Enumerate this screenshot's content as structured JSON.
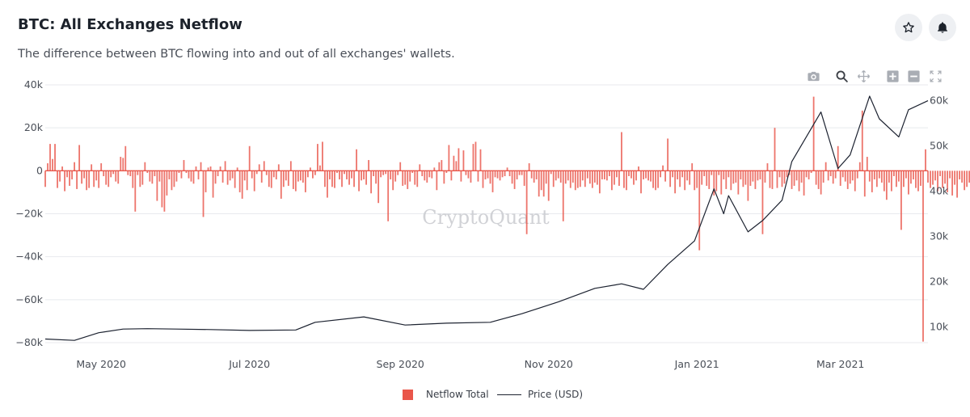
{
  "header": {
    "title": "BTC: All Exchanges Netflow",
    "subtitle": "The difference between BTC flowing into and out of all exchanges' wallets.",
    "star_icon": "star-icon",
    "bell_icon": "bell-icon"
  },
  "toolbar": {
    "icons": [
      "camera-icon",
      "zoom-icon",
      "pan-icon",
      "zoom-in-icon",
      "zoom-out-icon",
      "autoscale-icon"
    ]
  },
  "watermark": "CryptoQuant",
  "legend": {
    "netflow_label": "Netflow Total",
    "price_label": "Price (USD)"
  },
  "colors": {
    "bars": "#e9564a",
    "price_line": "#1c2230",
    "zero_line": "#e9564a",
    "grid": "#e8eaee"
  },
  "chart_data": {
    "type": "bar+line",
    "x_start": "2020-04-08",
    "x_end": "2021-04-06",
    "x_ticks": [
      {
        "date": "2020-05-01",
        "label": "May 2020"
      },
      {
        "date": "2020-07-01",
        "label": "Jul 2020"
      },
      {
        "date": "2020-09-01",
        "label": "Sep 2020"
      },
      {
        "date": "2020-11-01",
        "label": "Nov 2020"
      },
      {
        "date": "2021-01-01",
        "label": "Jan 2021"
      },
      {
        "date": "2021-03-01",
        "label": "Mar 2021"
      }
    ],
    "y_left": {
      "range": [
        -80000,
        40000
      ],
      "ticks": [
        40000,
        20000,
        0,
        -20000,
        -40000,
        -60000,
        -80000
      ],
      "labels": [
        "40k",
        "20k",
        "0",
        "−20k",
        "−40k",
        "−60k",
        "−80k"
      ]
    },
    "y_right": {
      "range": [
        6500,
        63500
      ],
      "ticks": [
        60000,
        50000,
        40000,
        30000,
        20000,
        10000
      ],
      "labels": [
        "60k",
        "50k",
        "40k",
        "30k",
        "20k",
        "10k"
      ]
    },
    "series": [
      {
        "name": "Netflow Total",
        "type": "bar",
        "axis": "left",
        "daily_values": [
          -7500,
          3500,
          -9000,
          5500,
          12500,
          -8000,
          -5000,
          2000,
          -9500,
          -3000,
          -7000,
          -4000,
          4000,
          -8500,
          12000,
          -6000,
          -3500,
          -9000,
          -8000,
          3000,
          -7500,
          -4500,
          -8000,
          3500,
          -2500,
          -6500,
          -7500,
          -3000,
          -1500,
          -5000,
          -6000,
          6500,
          6000,
          11500,
          -2000,
          -2500,
          -8000,
          -9500,
          -2000,
          -7500,
          -6500,
          4000,
          -1000,
          -5000,
          -6000,
          -2500,
          -14000,
          -5000,
          -17000,
          -19000,
          -11500,
          -4000,
          -9000,
          -7500,
          -5000,
          -1000,
          -3500,
          5000,
          -1000,
          -3500,
          -5000,
          -6000,
          2000,
          -4000,
          4000,
          -2500,
          -10000,
          1500,
          2000,
          -12500,
          -6000,
          -2500,
          2000,
          -5500,
          4500,
          -6500,
          -4500,
          -3500,
          -8000,
          1500,
          -10000,
          -13000,
          -4500,
          -9000,
          -21500,
          -3500,
          -9500,
          -1500,
          3000,
          -5500,
          4500,
          -2000,
          -7500,
          -8000,
          -3000,
          -4000,
          3000,
          -13000,
          -7500,
          -4500,
          -7000,
          4500,
          -8500,
          -9500,
          -5000,
          -4500,
          -5500,
          -10000,
          -3000,
          1500,
          -3500,
          -2000,
          -7500,
          2500,
          -2500,
          -7500,
          -12500,
          -4000,
          -7500,
          -8000,
          -1000,
          -4000,
          -7500,
          -1500,
          -4000,
          -6500,
          -3500,
          -7500,
          10000,
          -9500,
          -4500,
          -4000,
          -6500,
          5000,
          -10500,
          -2500,
          -6000,
          -15000,
          -3000,
          -2000,
          -1500,
          5500,
          -4000,
          -9000,
          -5000,
          -2000,
          4000,
          -7000,
          -6500,
          -8500,
          -5000,
          -1000,
          -6500,
          -7500,
          3000,
          -2500,
          -4500,
          -5500,
          -3000,
          -3500,
          1500,
          -9000,
          4000,
          5000,
          -6000,
          -1000,
          12000,
          -4500,
          7000,
          4500,
          10500,
          -5000,
          9500,
          -2000,
          -3500,
          -5500,
          12500,
          13500,
          -5000,
          10000,
          -8000,
          -4000,
          -3500,
          -6000,
          -10000,
          -3000,
          -3500,
          -4500,
          -3000,
          -2500,
          1500,
          -2500,
          -6000,
          -8500,
          -4000,
          -2000,
          -2000,
          -7000,
          -3500,
          3500,
          -3500,
          -5500,
          -4000,
          -12000,
          -9000,
          -12000,
          -6000,
          -14000,
          -1500,
          -7500,
          -4500,
          -3500,
          -5500,
          -23500,
          -6000,
          -4500,
          -8000,
          -5500,
          -9000,
          -8000,
          -7500,
          -4500,
          -7500,
          -3500,
          -6000,
          -8000,
          -5500,
          -6500,
          -10500,
          -4000,
          -4000,
          -4500,
          -2500,
          -9000,
          -6500,
          -3000,
          -7000,
          -4500,
          -8000,
          -9000,
          -2500,
          -3500,
          -6500,
          -4500,
          2000,
          -10500,
          -4000,
          -3500,
          -4500,
          -5000,
          -8000,
          -9000,
          -8000,
          -3000,
          2500,
          -5000,
          -3000,
          -7500,
          -3000,
          -10500,
          -4000,
          -7500,
          -3000,
          -9000,
          -4500,
          -6500,
          3500,
          -9000,
          -8000,
          2000,
          -6500,
          -2500,
          -7000,
          -8500,
          -2000,
          -11500,
          -9500,
          -2000,
          -11000,
          -4000,
          -8500,
          -3000,
          -9000,
          -6000,
          -5500,
          -11000,
          -4000,
          -7500,
          -6500,
          -14000,
          -7000,
          -5000,
          -8500,
          -4500,
          -4000,
          -29500,
          -5500,
          3500,
          -8000,
          -8500,
          -5000,
          -8000,
          -3000,
          -7500,
          -6000,
          -3000,
          -2000,
          -8500,
          -7000,
          -4500,
          -9500,
          -5500,
          -11500,
          -3000,
          -4000,
          -1000,
          -7000,
          -6500,
          -8500,
          -11000,
          -5500,
          4000,
          -4500,
          -2500,
          -6000,
          -3500,
          11500,
          -7000,
          -3000,
          -5000,
          -8500,
          -6000,
          -4500,
          -9500,
          -3500,
          4000,
          -6500,
          -12000,
          6500,
          -5000,
          -10000,
          -4000,
          -7500,
          -3500,
          -5500,
          -9500,
          -13500,
          -5500,
          -9500,
          -2500,
          -7500,
          -5000,
          -4000,
          -7500,
          -3500,
          -11000,
          -6000,
          -4000,
          -8000,
          -9500,
          -7000,
          -1500,
          -10500,
          -5500,
          -8000,
          -6500,
          -4500,
          -9500,
          -2500,
          -8000,
          -6000,
          -10000,
          -3500,
          -11500,
          -6500,
          -12500,
          -4000,
          -5500,
          -9000,
          -7500,
          -5500,
          -10000,
          -4000,
          -8500,
          -6500,
          -9000,
          -13000,
          -5000,
          -8000,
          -11500,
          -6500,
          -10000,
          -7000,
          -7500,
          -9000,
          -12000,
          -6000,
          -8500,
          -8000,
          -7500,
          -11500,
          -9000,
          -8000
        ],
        "highlights": [
          {
            "date": "2020-04-10",
            "value": 12500
          },
          {
            "date": "2020-05-15",
            "value": -19000
          },
          {
            "date": "2020-06-12",
            "value": -21500
          },
          {
            "date": "2020-07-01",
            "value": 11500
          },
          {
            "date": "2020-07-29",
            "value": 12500
          },
          {
            "date": "2020-07-31",
            "value": 13500
          },
          {
            "date": "2020-08-27",
            "value": -23500
          },
          {
            "date": "2020-10-23",
            "value": -29500
          },
          {
            "date": "2020-12-01",
            "value": 18000
          },
          {
            "date": "2020-12-20",
            "value": 15000
          },
          {
            "date": "2021-01-02",
            "value": -37000
          },
          {
            "date": "2021-02-02",
            "value": 20000
          },
          {
            "date": "2021-02-18",
            "value": 34500
          },
          {
            "date": "2021-03-10",
            "value": 28000
          },
          {
            "date": "2021-03-26",
            "value": -27500
          },
          {
            "date": "2021-04-04",
            "value": -79500
          },
          {
            "date": "2021-04-05",
            "value": 10000
          }
        ]
      },
      {
        "name": "Price (USD)",
        "type": "line",
        "axis": "right",
        "points": [
          {
            "date": "2020-04-08",
            "value": 7300
          },
          {
            "date": "2020-04-20",
            "value": 7000
          },
          {
            "date": "2020-04-30",
            "value": 8700
          },
          {
            "date": "2020-05-10",
            "value": 9500
          },
          {
            "date": "2020-05-20",
            "value": 9600
          },
          {
            "date": "2020-06-01",
            "value": 9500
          },
          {
            "date": "2020-06-15",
            "value": 9400
          },
          {
            "date": "2020-07-01",
            "value": 9200
          },
          {
            "date": "2020-07-20",
            "value": 9300
          },
          {
            "date": "2020-07-28",
            "value": 11000
          },
          {
            "date": "2020-08-17",
            "value": 12200
          },
          {
            "date": "2020-09-03",
            "value": 10400
          },
          {
            "date": "2020-09-20",
            "value": 10800
          },
          {
            "date": "2020-10-08",
            "value": 11000
          },
          {
            "date": "2020-10-21",
            "value": 12900
          },
          {
            "date": "2020-11-05",
            "value": 15500
          },
          {
            "date": "2020-11-20",
            "value": 18500
          },
          {
            "date": "2020-12-01",
            "value": 19500
          },
          {
            "date": "2020-12-10",
            "value": 18300
          },
          {
            "date": "2020-12-20",
            "value": 23800
          },
          {
            "date": "2020-12-31",
            "value": 29000
          },
          {
            "date": "2021-01-08",
            "value": 40500
          },
          {
            "date": "2021-01-12",
            "value": 35000
          },
          {
            "date": "2021-01-14",
            "value": 39000
          },
          {
            "date": "2021-01-22",
            "value": 31000
          },
          {
            "date": "2021-01-28",
            "value": 33500
          },
          {
            "date": "2021-02-05",
            "value": 38000
          },
          {
            "date": "2021-02-09",
            "value": 46500
          },
          {
            "date": "2021-02-21",
            "value": 57500
          },
          {
            "date": "2021-02-28",
            "value": 45000
          },
          {
            "date": "2021-03-05",
            "value": 48000
          },
          {
            "date": "2021-03-13",
            "value": 61000
          },
          {
            "date": "2021-03-17",
            "value": 56000
          },
          {
            "date": "2021-03-25",
            "value": 52000
          },
          {
            "date": "2021-03-29",
            "value": 58000
          },
          {
            "date": "2021-04-06",
            "value": 60000
          }
        ]
      }
    ],
    "title": "",
    "xlabel": "",
    "ylabel": "",
    "grid": true,
    "legend_position": "bottom-center"
  }
}
